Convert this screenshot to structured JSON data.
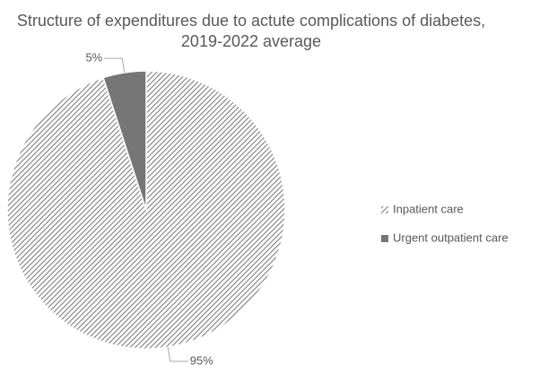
{
  "chart_data": {
    "type": "pie",
    "title": "Structure of expenditures due to actute complications of diabetes, 2019-2022 average",
    "categories": [
      "Inpatient care",
      "Urgent outpatient care"
    ],
    "values": [
      95,
      5
    ],
    "value_labels": [
      "95%",
      "5%"
    ],
    "colors": [
      "#7f7f7f",
      "#767676"
    ],
    "legend": "right"
  }
}
